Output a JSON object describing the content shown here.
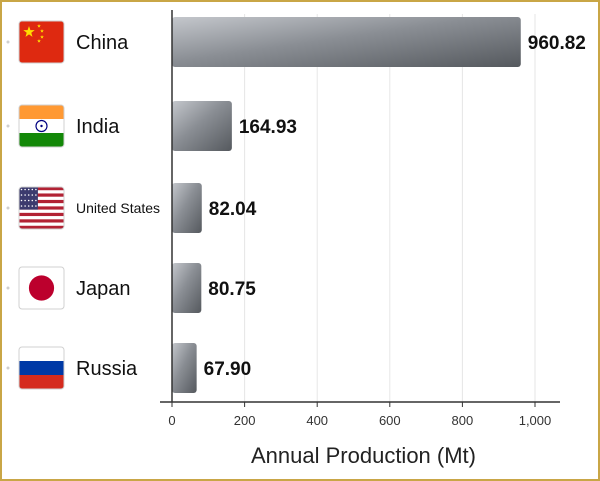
{
  "chart_data": {
    "type": "bar",
    "orientation": "horizontal",
    "title": "",
    "xlabel": "Annual Production (Mt)",
    "ylabel": "",
    "categories": [
      "China",
      "India",
      "United States",
      "Japan",
      "Russia"
    ],
    "values": [
      960.82,
      164.93,
      82.04,
      80.75,
      67.9
    ],
    "value_labels": [
      "960.82",
      "164.93",
      "82.04",
      "80.75",
      "67.90"
    ],
    "xlim": [
      0,
      1000
    ],
    "x_ticks": [
      0,
      200,
      400,
      600,
      800,
      1000
    ],
    "x_tick_labels": [
      "0",
      "200",
      "400",
      "600",
      "800",
      "1,000"
    ],
    "grid": true,
    "flags": [
      "china-flag-icon",
      "india-flag-icon",
      "united-states-flag-icon",
      "japan-flag-icon",
      "russia-flag-icon"
    ],
    "colors": {
      "bar_light": "#b9bcc1",
      "bar_dark": "#5f6368",
      "frame": "#c9a646",
      "grid": "#e6e6e6"
    }
  }
}
